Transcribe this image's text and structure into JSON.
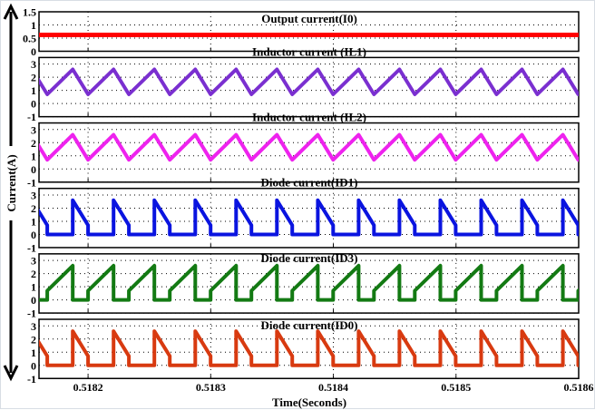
{
  "chart_data": {
    "type": "line",
    "xlabel": "Time(Seconds)",
    "ylabel": "Current(A)",
    "xlim": [
      0.51816,
      0.5186
    ],
    "xticks": [
      "0.5182",
      "0.5183",
      "0.5184",
      "0.5185",
      "0.5186"
    ],
    "grid": true,
    "switching_period_s": 3.33e-05,
    "first_trough_time": 0.5182,
    "panels": [
      {
        "title": "Output current(I0)",
        "color": "#ff0000",
        "ylim": [
          0,
          1.5
        ],
        "yticks": [
          "0",
          "0.5",
          "1",
          "1.5"
        ],
        "waveform": "constant",
        "value": 0.62
      },
      {
        "title": "Inductor current (IL1)",
        "color": "#7a2fd0",
        "ylim": [
          -1,
          3.5
        ],
        "yticks": [
          "-1",
          "0",
          "1",
          "2",
          "3"
        ],
        "waveform": "triangle",
        "min": 0.7,
        "max": 2.6,
        "rise_time_s": 2.08e-05
      },
      {
        "title": "Inductor current (IL2)",
        "color": "#ee22ee",
        "ylim": [
          -1,
          3.5
        ],
        "yticks": [
          "-1",
          "0",
          "1",
          "2",
          "3"
        ],
        "waveform": "triangle",
        "min": 0.7,
        "max": 2.6,
        "rise_time_s": 2.08e-05
      },
      {
        "title": "Diode current(ID1)",
        "color": "#0a14e0",
        "ylim": [
          -1,
          3.5
        ],
        "yticks": [
          "-1",
          "0",
          "1",
          "2",
          "3"
        ],
        "waveform": "falling",
        "min": 0.7,
        "max": 2.6,
        "rise_time_s": 2.08e-05
      },
      {
        "title": "Diode current(ID3)",
        "color": "#137a13",
        "ylim": [
          -1,
          3.5
        ],
        "yticks": [
          "-1",
          "0",
          "1",
          "2",
          "3"
        ],
        "waveform": "rising",
        "min": 0.7,
        "max": 2.6,
        "rise_time_s": 2.08e-05
      },
      {
        "title": "Diode current(ID0)",
        "color": "#d83a10",
        "ylim": [
          -1,
          3.5
        ],
        "yticks": [
          "-1",
          "0",
          "1",
          "2",
          "3"
        ],
        "waveform": "falling",
        "min": 0.7,
        "max": 2.6,
        "rise_time_s": 2.08e-05
      }
    ]
  }
}
